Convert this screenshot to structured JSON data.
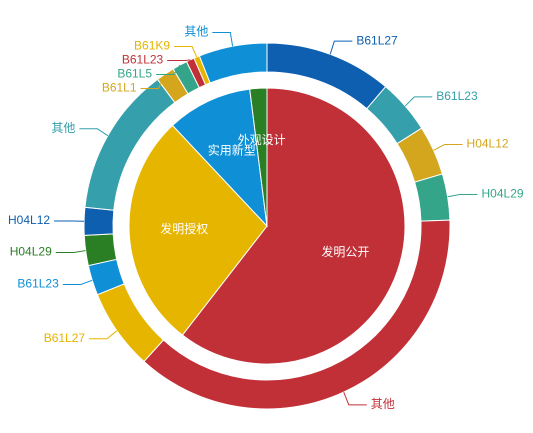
{
  "chart_data": {
    "type": "pie",
    "title": "",
    "inner": {
      "slices": [
        {
          "name": "发明公开",
          "value": 60.5,
          "color": "#c23037"
        },
        {
          "name": "发明授权",
          "value": 27.5,
          "color": "#e5b500"
        },
        {
          "name": "实用新型",
          "value": 10.0,
          "color": "#0f8fd6"
        },
        {
          "name": "外观设计",
          "value": 2.0,
          "color": "#2a7e24"
        }
      ]
    },
    "outer": {
      "slices": [
        {
          "name": "B61L27",
          "value": 11.0,
          "color": "#0e5fb0",
          "group": "发明公开"
        },
        {
          "name": "B61L23",
          "value": 4.7,
          "color": "#35a0ab",
          "group": "发明公开"
        },
        {
          "name": "H04L12",
          "value": 4.3,
          "color": "#d3a61d",
          "group": "发明公开"
        },
        {
          "name": "H04L29",
          "value": 4.0,
          "color": "#34a589",
          "group": "发明公开"
        },
        {
          "name": "其他",
          "value": 36.5,
          "color": "#c23037",
          "group": "发明公开"
        },
        {
          "name": "B61L27",
          "value": 7.0,
          "color": "#e5b500",
          "group": "发明授权"
        },
        {
          "name": "B61L23",
          "value": 2.6,
          "color": "#0f8fd6",
          "group": "发明授权"
        },
        {
          "name": "H04L29",
          "value": 2.6,
          "color": "#2a7e24",
          "group": "发明授权"
        },
        {
          "name": "H04L12",
          "value": 2.4,
          "color": "#0e5fb0",
          "group": "发明授权"
        },
        {
          "name": "其他",
          "value": 12.9,
          "color": "#35a0ab",
          "group": "发明授权"
        },
        {
          "name": "B61L1",
          "value": 1.6,
          "color": "#d3a61d",
          "group": "实用新型"
        },
        {
          "name": "B61L5",
          "value": 1.3,
          "color": "#34a589",
          "group": "实用新型"
        },
        {
          "name": "B61L23",
          "value": 0.7,
          "color": "#c23037",
          "group": "实用新型"
        },
        {
          "name": "B61K9",
          "value": 0.5,
          "color": "#e5b500",
          "group": "实用新型"
        },
        {
          "name": "其他",
          "value": 5.9,
          "color": "#0f8fd6",
          "group": "实用新型"
        }
      ]
    }
  }
}
